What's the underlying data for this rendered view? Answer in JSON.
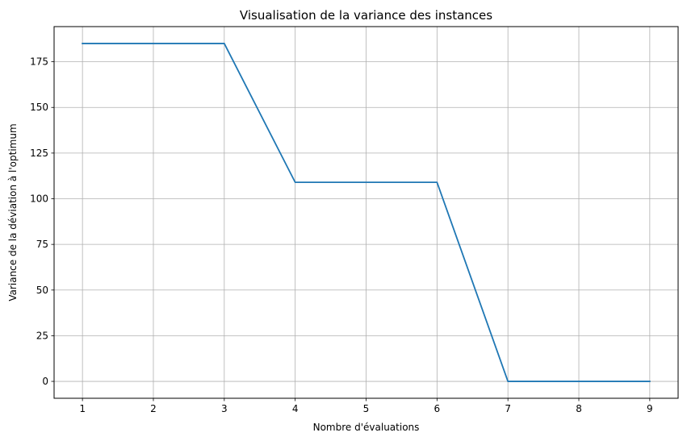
{
  "chart_data": {
    "type": "line",
    "title": "Visualisation de la variance des instances",
    "xlabel": "Nombre d'évaluations",
    "ylabel": "Variance de la déviation à l'optimum",
    "x": [
      1,
      2,
      3,
      4,
      5,
      6,
      7,
      8,
      9
    ],
    "series": [
      {
        "values": [
          185.0,
          185.0,
          185.0,
          109.0,
          109.0,
          109.0,
          0.0,
          0.0,
          0.0
        ],
        "color": "#1f77b4"
      }
    ],
    "xlim": [
      0.6,
      9.4
    ],
    "ylim": [
      -9.25,
      194.25
    ],
    "xticks": [
      1,
      2,
      3,
      4,
      5,
      6,
      7,
      8,
      9
    ],
    "yticks": [
      0,
      25,
      50,
      75,
      100,
      125,
      150,
      175
    ],
    "grid": true,
    "legend": "none"
  }
}
